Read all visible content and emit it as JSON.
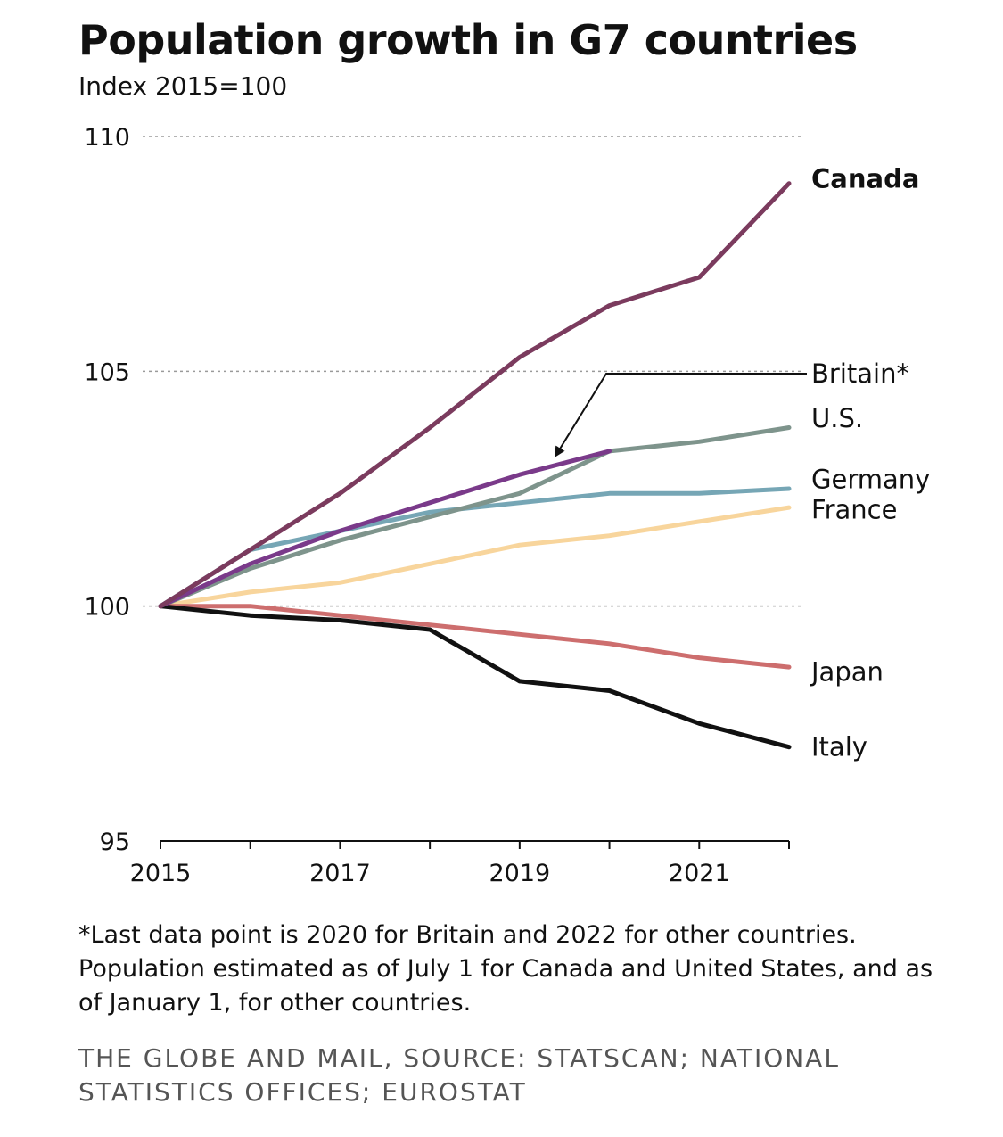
{
  "title": "Population growth in G7 countries",
  "subtitle": "Index 2015=100",
  "note": "*Last data point is 2020 for Britain and 2022 for other countries. Population estimated as of July 1 for Canada and United States, and as of January 1, for other countries.",
  "source": "THE GLOBE AND MAIL, SOURCE: STATSCAN; NATIONAL STATISTICS OFFICES; EUROSTAT",
  "chart_data": {
    "type": "line",
    "title": "Population growth in G7 countries",
    "subtitle": "Index 2015=100",
    "xlabel": "",
    "ylabel": "",
    "x": [
      2015,
      2016,
      2017,
      2018,
      2019,
      2020,
      2021,
      2022
    ],
    "x_ticks": [
      "2015",
      "2017",
      "2019",
      "2021"
    ],
    "x_tick_values": [
      2015,
      2017,
      2019,
      2021
    ],
    "xlim": [
      2015,
      2022
    ],
    "y_ticks": [
      "110",
      "105",
      "100",
      "95"
    ],
    "y_tick_values": [
      110,
      105,
      100,
      95
    ],
    "ylim": [
      95,
      110
    ],
    "grid": "horizontal dotted",
    "legend": "labels at line ends (right)",
    "series": [
      {
        "name": "Canada",
        "color": "#7b3b5e",
        "values": [
          100,
          101.2,
          102.4,
          103.8,
          105.3,
          106.4,
          107.0,
          109.0
        ],
        "label_value": 109.1,
        "bold": true
      },
      {
        "name": "Britain*",
        "color": "#7a3a8a",
        "values": [
          100,
          100.9,
          101.6,
          102.2,
          102.8,
          103.3,
          null,
          null
        ],
        "label_value": 104.95,
        "bold": false,
        "annotated": true
      },
      {
        "name": "U.S.",
        "color": "#7e948c",
        "values": [
          100,
          100.8,
          101.4,
          101.9,
          102.4,
          103.3,
          103.5,
          103.8
        ],
        "label_value": 104.0,
        "bold": false
      },
      {
        "name": "Germany",
        "color": "#76a6b5",
        "values": [
          100,
          101.2,
          101.6,
          102.0,
          102.2,
          102.4,
          102.4,
          102.5
        ],
        "label_value": 102.7,
        "bold": false
      },
      {
        "name": "France",
        "color": "#f8d59c",
        "values": [
          100,
          100.3,
          100.5,
          100.9,
          101.3,
          101.5,
          101.8,
          102.1
        ],
        "label_value": 102.05,
        "bold": false
      },
      {
        "name": "Japan",
        "color": "#cd6e6e",
        "values": [
          100,
          100.0,
          99.8,
          99.6,
          99.4,
          99.2,
          98.9,
          98.7
        ],
        "label_value": 98.6,
        "bold": false
      },
      {
        "name": "Italy",
        "color": "#111111",
        "values": [
          100,
          99.8,
          99.7,
          99.5,
          98.4,
          98.2,
          97.5,
          97.0
        ],
        "label_value": 97.0,
        "bold": false
      }
    ],
    "annotations": [
      {
        "target": "Britain*",
        "kind": "leader-arrow",
        "from_value": 104.95,
        "to": {
          "x": 2019.4,
          "y": 103.2
        }
      }
    ]
  }
}
